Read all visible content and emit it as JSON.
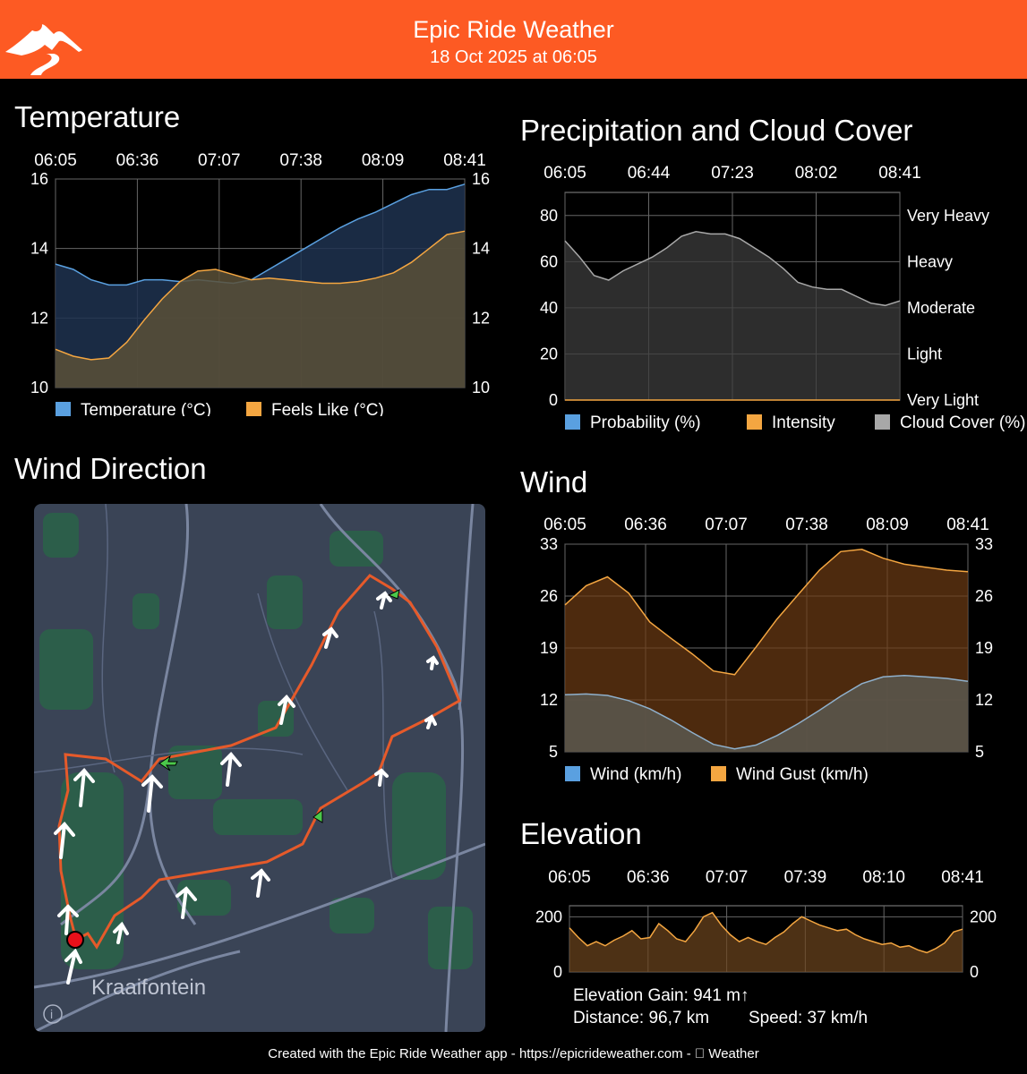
{
  "header": {
    "title": "Epic Ride Weather",
    "subtitle": "18 Oct 2025 at 06:05",
    "header_color": "#fd5a23"
  },
  "sections": {
    "temperature": "Temperature",
    "precip": "Precipitation and Cloud Cover",
    "wind_direction": "Wind Direction",
    "wind": "Wind",
    "elevation": "Elevation"
  },
  "map": {
    "place_label": "Kraaifontein",
    "info_icon": "info-icon"
  },
  "elevation_stats": {
    "gain": "Elevation Gain: 941 m↑",
    "distance": "Distance: 96,7 km",
    "speed": "Speed: 37 km/h"
  },
  "footer": {
    "text": "Created with the Epic Ride Weather app - https://epicrideweather.com -  Weather"
  },
  "chart_data": [
    {
      "id": "temperature",
      "type": "area",
      "x_ticks": [
        "06:05",
        "06:36",
        "07:07",
        "07:38",
        "08:09",
        "08:41"
      ],
      "y_ticks": [
        "16",
        "14",
        "12",
        "10"
      ],
      "ylim": [
        10,
        16
      ],
      "grid": true,
      "series": [
        {
          "name": "Temperature (°C)",
          "color": "#5aa0e0",
          "values": [
            13.55,
            13.4,
            13.1,
            12.95,
            12.95,
            13.1,
            13.1,
            13.05,
            13.1,
            13.05,
            13.0,
            13.1,
            13.4,
            13.7,
            14.0,
            14.3,
            14.6,
            14.85,
            15.05,
            15.3,
            15.55,
            15.7,
            15.7,
            15.85
          ]
        },
        {
          "name": "Feels Like (°C)",
          "color": "#f4a641",
          "values": [
            11.1,
            10.9,
            10.8,
            10.85,
            11.3,
            11.95,
            12.55,
            13.05,
            13.35,
            13.4,
            13.25,
            13.1,
            13.15,
            13.1,
            13.05,
            13.0,
            13.0,
            13.05,
            13.15,
            13.3,
            13.6,
            14.0,
            14.4,
            14.5
          ]
        }
      ]
    },
    {
      "id": "precipitation",
      "type": "area",
      "x_ticks": [
        "06:05",
        "06:44",
        "07:23",
        "08:02",
        "08:41"
      ],
      "y_ticks": [
        "80",
        "60",
        "40",
        "20",
        "0"
      ],
      "right_labels": [
        "Very Heavy",
        "Heavy",
        "Moderate",
        "Light",
        "Very Light"
      ],
      "ylim": [
        0,
        90
      ],
      "grid": true,
      "series": [
        {
          "name": "Probability (%)",
          "color": "#5aa0e0",
          "values": [
            0,
            0,
            0,
            0,
            0,
            0,
            0,
            0,
            0,
            0,
            0,
            0,
            0,
            0,
            0,
            0,
            0,
            0,
            0,
            0,
            0,
            0,
            0,
            0
          ]
        },
        {
          "name": "Intensity",
          "color": "#f4a641",
          "values": [
            0,
            0,
            0,
            0,
            0,
            0,
            0,
            0,
            0,
            0,
            0,
            0,
            0,
            0,
            0,
            0,
            0,
            0,
            0,
            0,
            0,
            0,
            0,
            0
          ]
        },
        {
          "name": "Cloud Cover (%)",
          "color": "#a8a8a8",
          "values": [
            69,
            62,
            54,
            52,
            56,
            59,
            62,
            66,
            71,
            73,
            72,
            72,
            70,
            66,
            62,
            57,
            51,
            49,
            48,
            48,
            45,
            42,
            41,
            43
          ]
        }
      ]
    },
    {
      "id": "wind",
      "type": "area",
      "x_ticks": [
        "06:05",
        "06:36",
        "07:07",
        "07:38",
        "08:09",
        "08:41"
      ],
      "y_ticks": [
        "33",
        "26",
        "19",
        "12",
        "5"
      ],
      "ylim": [
        5,
        33
      ],
      "grid": true,
      "series": [
        {
          "name": "Wind (km/h)",
          "color": "#5aa0e0",
          "values": [
            12.7,
            12.8,
            12.6,
            11.9,
            10.8,
            9.3,
            7.6,
            6.0,
            5.4,
            5.9,
            7.2,
            8.8,
            10.6,
            12.5,
            14.2,
            15.1,
            15.3,
            15.1,
            14.9,
            14.5
          ]
        },
        {
          "name": "Wind Gust (km/h)",
          "color": "#f4a641",
          "values": [
            24.8,
            27.4,
            28.6,
            26.4,
            22.5,
            20.3,
            18.2,
            15.9,
            15.4,
            19.1,
            22.9,
            26.2,
            29.5,
            32.0,
            32.3,
            31.1,
            30.3,
            29.9,
            29.5,
            29.3
          ]
        }
      ]
    },
    {
      "id": "elevation",
      "type": "area",
      "x_ticks": [
        "06:05",
        "06:36",
        "07:07",
        "07:39",
        "08:10",
        "08:41"
      ],
      "y_ticks": [
        "200",
        "0"
      ],
      "ylim": [
        0,
        240
      ],
      "grid": true,
      "series": [
        {
          "name": "Elevation",
          "color": "#f4a641",
          "values": [
            160,
            125,
            95,
            110,
            95,
            115,
            130,
            150,
            120,
            125,
            175,
            150,
            120,
            110,
            150,
            200,
            215,
            170,
            135,
            110,
            125,
            110,
            100,
            125,
            145,
            175,
            200,
            185,
            170,
            160,
            150,
            155,
            135,
            120,
            110,
            100,
            105,
            90,
            95,
            80,
            70,
            85,
            105,
            145,
            155
          ]
        }
      ]
    }
  ]
}
